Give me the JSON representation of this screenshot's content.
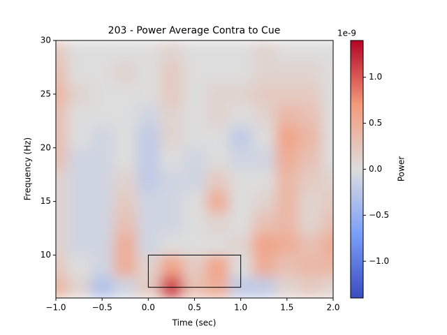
{
  "chart_data": {
    "type": "heatmap",
    "title": "203 - Power Average Contra to Cue",
    "x_label": "Time (sec)",
    "y_label": "Frequency (Hz)",
    "colorbar_label": "Power",
    "colorbar_offset": "1e-9",
    "colormap": "coolwarm",
    "xlim": [
      -1,
      2
    ],
    "ylim": [
      6,
      30
    ],
    "clim": [
      -1.4,
      1.4
    ],
    "xticks": [
      {
        "value": -1,
        "label": "−1.0"
      },
      {
        "value": -0.5,
        "label": "−0.5"
      },
      {
        "value": 0,
        "label": "0.0"
      },
      {
        "value": 0.5,
        "label": "0.5"
      },
      {
        "value": 1,
        "label": "1.0"
      },
      {
        "value": 1.5,
        "label": "1.5"
      },
      {
        "value": 2,
        "label": "2.0"
      }
    ],
    "yticks": [
      10,
      15,
      20,
      25,
      30
    ],
    "cticks": [
      {
        "value": -1,
        "label": "−1.0"
      },
      {
        "value": -0.5,
        "label": "−0.5"
      },
      {
        "value": 0,
        "label": "0.0"
      },
      {
        "value": 0.5,
        "label": "0.5"
      },
      {
        "value": 1,
        "label": "1.0"
      }
    ],
    "x": [
      -1,
      -0.75,
      -0.5,
      -0.25,
      0,
      0.25,
      0.5,
      0.75,
      1,
      1.25,
      1.5,
      1.75,
      2
    ],
    "y": [
      7,
      9,
      11,
      13,
      15,
      17,
      19,
      21,
      23,
      25,
      27,
      29
    ],
    "z": [
      [
        0.4,
        0.1,
        -0.3,
        -0.1,
        0.2,
        1.1,
        0.3,
        0.5,
        -0.2,
        -0.2,
        0.1,
        0.2,
        0.1
      ],
      [
        0.2,
        0.0,
        -0.1,
        0.5,
        0.1,
        0.6,
        0.2,
        0.6,
        0.0,
        0.5,
        0.3,
        0.4,
        0.4
      ],
      [
        0.1,
        -0.1,
        -0.1,
        0.5,
        -0.1,
        0.0,
        0.0,
        0.0,
        0.1,
        0.6,
        0.5,
        0.3,
        0.5
      ],
      [
        0.1,
        -0.1,
        -0.1,
        0.3,
        -0.1,
        -0.1,
        0.0,
        0.1,
        0.0,
        0.3,
        0.4,
        0.1,
        0.3
      ],
      [
        0.1,
        -0.1,
        -0.1,
        0.2,
        -0.1,
        -0.1,
        0.0,
        0.5,
        0.0,
        0.1,
        0.4,
        0.1,
        0.2
      ],
      [
        0.1,
        -0.1,
        -0.1,
        0.1,
        -0.2,
        -0.1,
        -0.1,
        0.2,
        0.0,
        0.0,
        0.4,
        0.2,
        0.1
      ],
      [
        0.3,
        -0.1,
        -0.1,
        0.0,
        -0.2,
        0.0,
        -0.1,
        0.0,
        -0.1,
        -0.1,
        0.5,
        0.3,
        0.0
      ],
      [
        0.3,
        0.0,
        -0.1,
        0.0,
        -0.2,
        0.1,
        0.0,
        0.0,
        -0.2,
        0.0,
        0.6,
        0.4,
        0.0
      ],
      [
        0.3,
        0.0,
        0.0,
        0.0,
        -0.1,
        0.1,
        0.0,
        0.1,
        0.0,
        0.1,
        0.4,
        0.3,
        0.0
      ],
      [
        0.4,
        0.1,
        0.0,
        0.0,
        0.0,
        0.2,
        0.0,
        0.1,
        0.1,
        0.2,
        0.2,
        0.2,
        0.0
      ],
      [
        0.3,
        0.0,
        0.0,
        0.1,
        0.0,
        0.2,
        0.0,
        0.0,
        0.0,
        0.1,
        0.1,
        0.1,
        0.0
      ],
      [
        0.2,
        0.0,
        0.0,
        0.0,
        0.0,
        0.1,
        0.0,
        0.0,
        0.0,
        0.1,
        0.0,
        0.0,
        0.0
      ]
    ],
    "roi": {
      "x": [
        0,
        1
      ],
      "y": [
        7,
        10
      ]
    }
  }
}
